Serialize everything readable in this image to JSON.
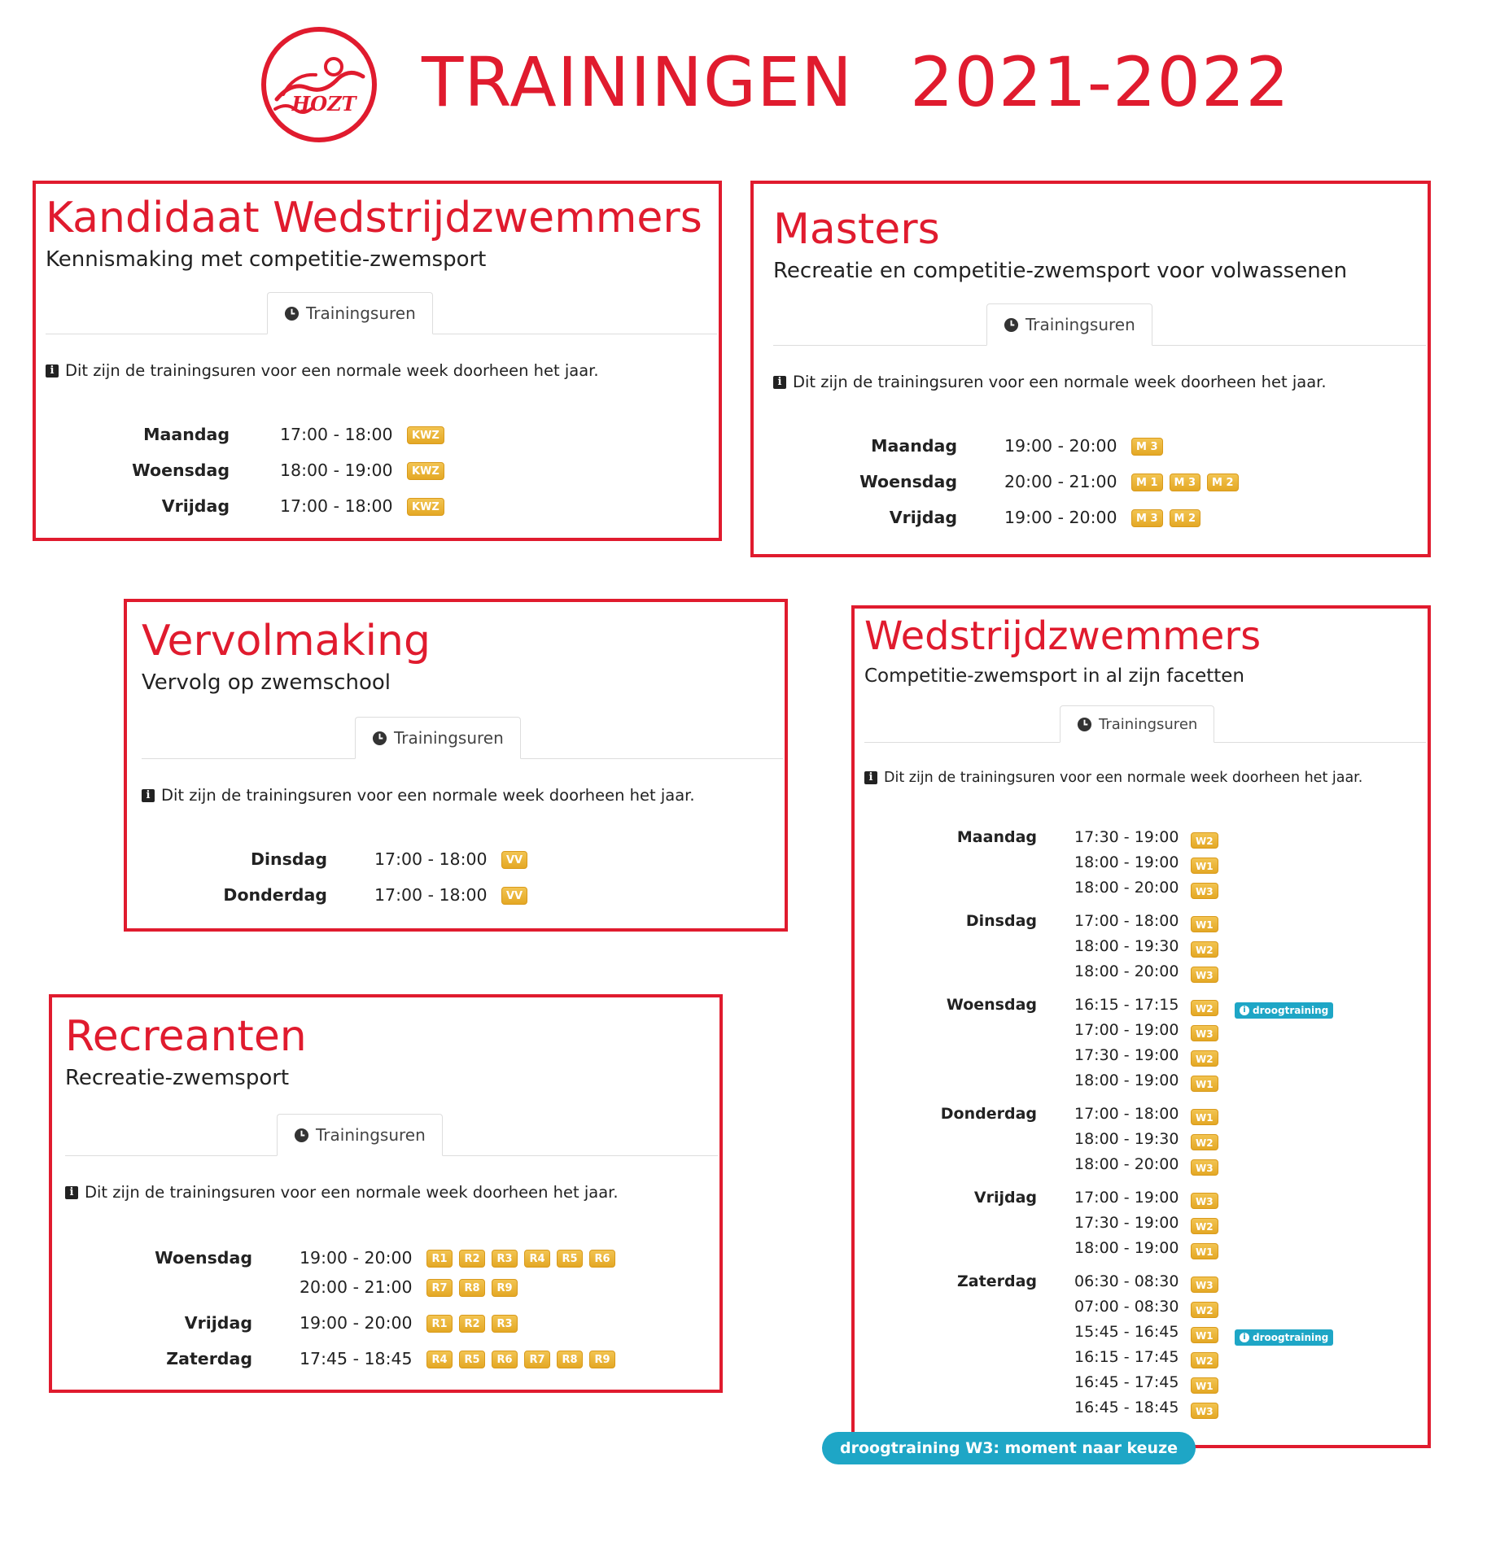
{
  "header": {
    "logo_text": "HOZT",
    "title": "TRAININGEN",
    "season": "2021-2022"
  },
  "common": {
    "tab_label": "Trainingsuren",
    "info_text": "Dit zijn de trainingsuren voor een normale week doorheen het jaar."
  },
  "icons": {
    "tab": "clock-icon",
    "info": "info-icon",
    "badge_info": "info-circle-icon"
  },
  "colors": {
    "accent": "#e01b2e",
    "badge": "#e4a825",
    "info_badge": "#1ea6c6"
  },
  "kwz": {
    "title": "Kandidaat Wedstrijdzwemmers",
    "subtitle": "Kennismaking met competitie-zwemsport",
    "rows": [
      {
        "day": "Maandag",
        "time": "17:00 - 18:00",
        "badges": [
          "KWZ"
        ]
      },
      {
        "day": "Woensdag",
        "time": "18:00 - 19:00",
        "badges": [
          "KWZ"
        ]
      },
      {
        "day": "Vrijdag",
        "time": "17:00 - 18:00",
        "badges": [
          "KWZ"
        ]
      }
    ]
  },
  "masters": {
    "title": "Masters",
    "subtitle": "Recreatie en competitie-zwemsport voor volwassenen",
    "rows": [
      {
        "day": "Maandag",
        "time": "19:00 - 20:00",
        "badges": [
          "M 3"
        ]
      },
      {
        "day": "Woensdag",
        "time": "20:00 - 21:00",
        "badges": [
          "M 1",
          "M 3",
          "M 2"
        ]
      },
      {
        "day": "Vrijdag",
        "time": "19:00 - 20:00",
        "badges": [
          "M 3",
          "M 2"
        ]
      }
    ]
  },
  "vervolmaking": {
    "title": "Vervolmaking",
    "subtitle": "Vervolg op zwemschool",
    "rows": [
      {
        "day": "Dinsdag",
        "time": "17:00 - 18:00",
        "badges": [
          "VV"
        ]
      },
      {
        "day": "Donderdag",
        "time": "17:00 - 18:00",
        "badges": [
          "VV"
        ]
      }
    ]
  },
  "recreanten": {
    "title": "Recreanten",
    "subtitle": "Recreatie-zwemsport",
    "rows": [
      {
        "day": "Woensdag",
        "time": "19:00 - 20:00",
        "badges": [
          "R1",
          "R2",
          "R3",
          "R4",
          "R5",
          "R6"
        ]
      },
      {
        "day": "",
        "time": "20:00 - 21:00",
        "badges": [
          "R7",
          "R8",
          "R9"
        ]
      },
      {
        "day": "Vrijdag",
        "time": "19:00 - 20:00",
        "badges": [
          "R1",
          "R2",
          "R3"
        ]
      },
      {
        "day": "Zaterdag",
        "time": "17:45 - 18:45",
        "badges": [
          "R4",
          "R5",
          "R6",
          "R7",
          "R8",
          "R9"
        ]
      }
    ]
  },
  "wedstrijd": {
    "title": "Wedstrijdzwemmers",
    "subtitle": "Competitie-zwemsport in al zijn facetten",
    "groups": [
      {
        "day": "Maandag",
        "lines": [
          {
            "time": "17:30 - 19:00",
            "badge": "W2",
            "extra": ""
          },
          {
            "time": "18:00 - 19:00",
            "badge": "W1",
            "extra": ""
          },
          {
            "time": "18:00 - 20:00",
            "badge": "W3",
            "extra": ""
          }
        ]
      },
      {
        "day": "Dinsdag",
        "lines": [
          {
            "time": "17:00 - 18:00",
            "badge": "W1",
            "extra": ""
          },
          {
            "time": "18:00 - 19:30",
            "badge": "W2",
            "extra": ""
          },
          {
            "time": "18:00 - 20:00",
            "badge": "W3",
            "extra": ""
          }
        ]
      },
      {
        "day": "Woensdag",
        "lines": [
          {
            "time": "16:15 - 17:15",
            "badge": "W2",
            "extra": "droogtraining"
          },
          {
            "time": "17:00 - 19:00",
            "badge": "W3",
            "extra": ""
          },
          {
            "time": "17:30 - 19:00",
            "badge": "W2",
            "extra": ""
          },
          {
            "time": "18:00 - 19:00",
            "badge": "W1",
            "extra": ""
          }
        ]
      },
      {
        "day": "Donderdag",
        "lines": [
          {
            "time": "17:00 - 18:00",
            "badge": "W1",
            "extra": ""
          },
          {
            "time": "18:00 - 19:30",
            "badge": "W2",
            "extra": ""
          },
          {
            "time": "18:00 - 20:00",
            "badge": "W3",
            "extra": ""
          }
        ]
      },
      {
        "day": "Vrijdag",
        "lines": [
          {
            "time": "17:00 - 19:00",
            "badge": "W3",
            "extra": ""
          },
          {
            "time": "17:30 - 19:00",
            "badge": "W2",
            "extra": ""
          },
          {
            "time": "18:00 - 19:00",
            "badge": "W1",
            "extra": ""
          }
        ]
      },
      {
        "day": "Zaterdag",
        "lines": [
          {
            "time": "06:30 - 08:30",
            "badge": "W3",
            "extra": ""
          },
          {
            "time": "07:00 - 08:30",
            "badge": "W2",
            "extra": ""
          },
          {
            "time": "15:45 - 16:45",
            "badge": "W1",
            "extra": "droogtraining"
          },
          {
            "time": "16:15 - 17:45",
            "badge": "W2",
            "extra": ""
          },
          {
            "time": "16:45 - 17:45",
            "badge": "W1",
            "extra": ""
          },
          {
            "time": "16:45 - 18:45",
            "badge": "W3",
            "extra": ""
          }
        ]
      }
    ]
  },
  "footer_note": "droogtraining W3: moment naar keuze"
}
